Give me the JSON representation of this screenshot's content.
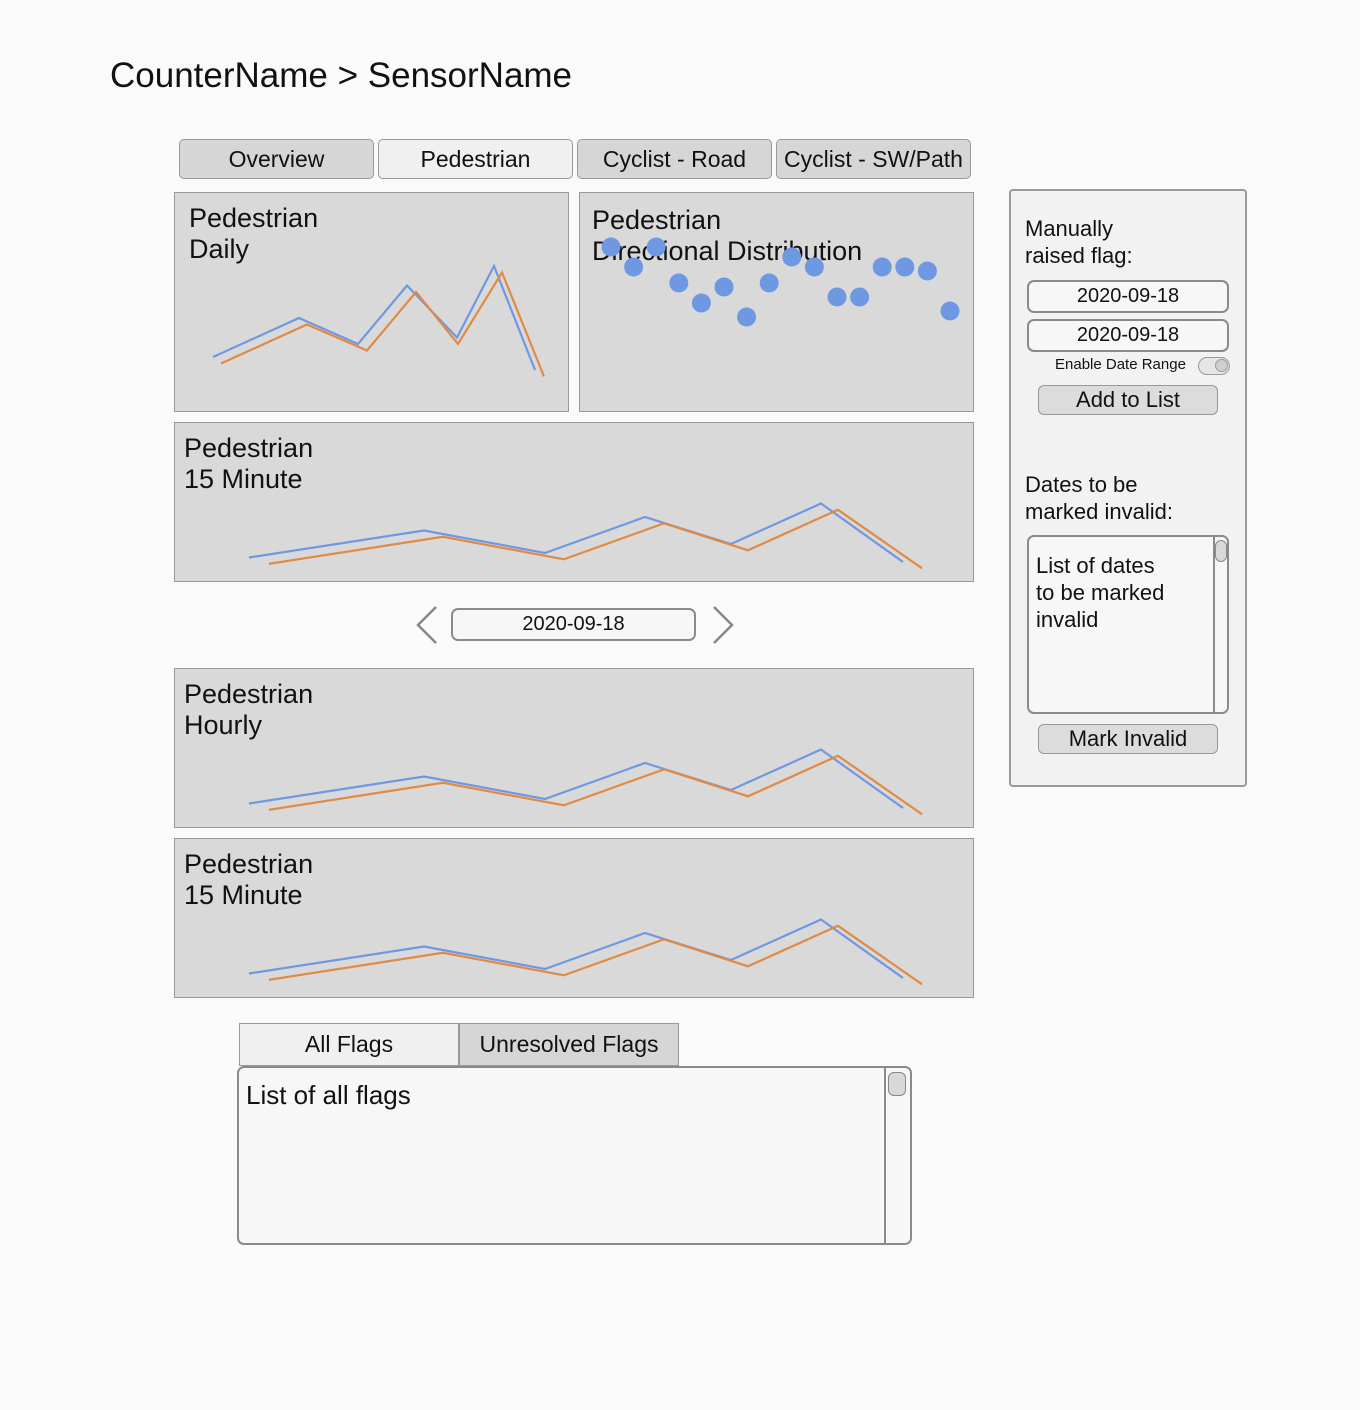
{
  "breadcrumb": "CounterName > SensorName",
  "tabs": [
    {
      "label": "Overview",
      "active": false
    },
    {
      "label": "Pedestrian",
      "active": true
    },
    {
      "label": "Cyclist - Road",
      "active": false
    },
    {
      "label": "Cyclist - SW/Path",
      "active": false
    }
  ],
  "colors": {
    "series_a": "#6f98e3",
    "series_b": "#e08a46",
    "panel_bg": "#d9d9d9"
  },
  "panels": {
    "daily_title": "Pedestrian\nDaily",
    "directional_title": "Pedestrian\nDirectional Distribution",
    "fifteen_top_title": "Pedestrian\n15 Minute",
    "hourly_title": "Pedestrian\nHourly",
    "fifteen_bottom_title": "Pedestrian\n15 Minute"
  },
  "chart_data": [
    {
      "type": "line",
      "title": "",
      "series": [
        {
          "values": [
            2,
            5,
            3,
            7.5,
            3.5,
            9,
            1
          ]
        },
        {
          "values": [
            1.5,
            4.5,
            2.5,
            7,
            3,
            8.5,
            0.5
          ]
        }
      ]
    },
    {
      "type": "scatter",
      "title": "",
      "values": [
        7,
        6,
        7,
        5.2,
        4.2,
        5,
        3.5,
        5.2,
        6.5,
        6,
        4.5,
        4.5,
        6,
        6,
        5.8,
        3.8
      ]
    },
    {
      "type": "line",
      "title": "",
      "series": [
        {
          "values": [
            1.5,
            4.5,
            2,
            6,
            3,
            7.5,
            1
          ]
        },
        {
          "values": [
            0.8,
            3.8,
            1.3,
            5.3,
            2.3,
            6.8,
            0.3
          ]
        }
      ]
    },
    {
      "type": "line",
      "title": "",
      "series": [
        {
          "values": [
            1.5,
            4.5,
            2,
            6,
            3,
            7.5,
            1
          ]
        },
        {
          "values": [
            0.8,
            3.8,
            1.3,
            5.3,
            2.3,
            6.8,
            0.3
          ]
        }
      ]
    },
    {
      "type": "line",
      "title": "",
      "series": [
        {
          "values": [
            1.5,
            4.5,
            2,
            6,
            3,
            7.5,
            1
          ]
        },
        {
          "values": [
            0.8,
            3.8,
            1.3,
            5.3,
            2.3,
            6.8,
            0.3
          ]
        }
      ]
    }
  ],
  "date_nav": {
    "date": "2020-09-18",
    "prev_icon": "chevron-left-icon",
    "next_icon": "chevron-right-icon"
  },
  "side": {
    "flag_label": "Manually\nraised flag:",
    "start_date": "2020-09-18",
    "end_date": "2020-09-18",
    "range_label": "Enable Date Range",
    "range_enabled": false,
    "add_button": "Add to List",
    "invalid_label": "Dates to be\nmarked invalid:",
    "invalid_list_placeholder": "List of dates\nto be marked\ninvalid",
    "mark_button": "Mark Invalid"
  },
  "flags": {
    "tabs": [
      {
        "label": "All Flags",
        "active": true
      },
      {
        "label": "Unresolved Flags",
        "active": false
      }
    ],
    "list_placeholder": "List of all flags"
  }
}
